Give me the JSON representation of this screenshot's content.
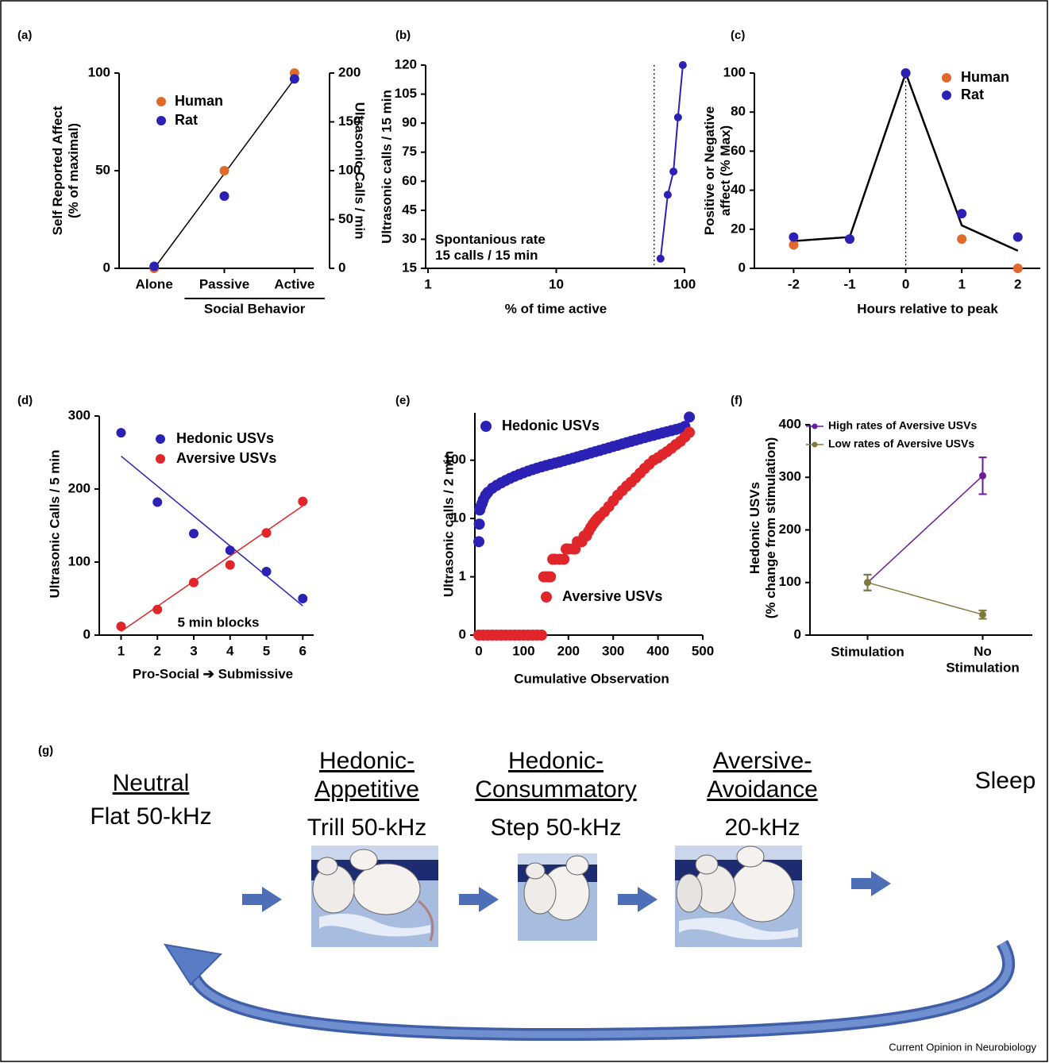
{
  "chart_data": [
    {
      "type": "scatter",
      "label": "(a)",
      "categories": [
        "Alone",
        "Passive",
        "Active"
      ],
      "group_label": "Social Behavior",
      "ylabel": "Self Reported Affect\n(% of maximal)",
      "y2label": "Ultrasonic Calls / min",
      "ylim": [
        0,
        100
      ],
      "yticks": [
        0,
        50,
        100
      ],
      "y2lim": [
        0,
        200
      ],
      "y2ticks": [
        0,
        50,
        100,
        150,
        200
      ],
      "series": [
        {
          "name": "Human",
          "color": "#e06a2c",
          "values": [
            0,
            50,
            100
          ]
        },
        {
          "name": "Rat",
          "color": "#2b22b5",
          "axis": "y2",
          "values": [
            2,
            74,
            194
          ]
        }
      ],
      "fit": {
        "color": "#000000",
        "values": [
          0,
          48.5,
          97
        ]
      }
    },
    {
      "type": "line",
      "label": "(b)",
      "xlabel": "% of time active",
      "ylabel": "Ultrasonic calls / 15 min",
      "xlog": true,
      "xlim": [
        1,
        100
      ],
      "xticks": [
        1,
        10,
        100
      ],
      "ylim": [
        15,
        120
      ],
      "yticks": [
        15,
        30,
        45,
        60,
        75,
        90,
        105,
        120
      ],
      "x": [
        65,
        74,
        82,
        89,
        97
      ],
      "series": [
        {
          "color": "#2b22b5",
          "values": [
            20,
            53,
            65,
            93,
            120
          ]
        }
      ],
      "vline": 58,
      "annotation": "Spontanious rate\n15 calls / 15 min"
    },
    {
      "type": "scatter",
      "label": "(c)",
      "xlabel": "Hours relative to peak",
      "ylabel": "Positive or Negative\naffect (% Max)",
      "xlim": [
        -2.7,
        2.4
      ],
      "xticks": [
        -2,
        -1,
        0,
        1,
        2
      ],
      "ylim": [
        0,
        100
      ],
      "yticks": [
        0,
        20,
        40,
        60,
        80,
        100
      ],
      "x": [
        -2,
        -1,
        0,
        1,
        2
      ],
      "series": [
        {
          "name": "Human",
          "color": "#e06a2c",
          "values": [
            12,
            15,
            100,
            15,
            0
          ]
        },
        {
          "name": "Rat",
          "color": "#2b22b5",
          "values": [
            16,
            15,
            100,
            28,
            16
          ]
        }
      ],
      "fit": {
        "color": "#000000",
        "values": [
          14,
          16,
          100,
          22,
          9
        ]
      },
      "vline": 0
    },
    {
      "type": "scatter",
      "label": "(d)",
      "xlabel": "Pro-Social ➔ Submissive",
      "ylabel": "Ultrasonic Calls / 5 min",
      "xlim": [
        0.4,
        6.3
      ],
      "xticks": [
        1,
        2,
        3,
        4,
        5,
        6
      ],
      "ylim": [
        0,
        300
      ],
      "yticks": [
        0,
        100,
        200,
        300
      ],
      "x": [
        1,
        2,
        3,
        4,
        5,
        6
      ],
      "series": [
        {
          "name": "Hedonic USVs",
          "color": "#2b22b5",
          "values": [
            277,
            182,
            139,
            116,
            87,
            50
          ],
          "fit": {
            "x": [
              1,
              6
            ],
            "values": [
              245,
              40
            ]
          }
        },
        {
          "name": "Aversive USVs",
          "color": "#e0262a",
          "values": [
            12,
            35,
            72,
            96,
            140,
            183
          ],
          "fit": {
            "x": [
              1,
              6
            ],
            "values": [
              5,
              177
            ]
          }
        }
      ],
      "annotation": "5 min blocks"
    },
    {
      "type": "scatter",
      "label": "(e)",
      "xlabel": "Cumulative Observation",
      "ylabel": "Ultrasonic calls / 2 min",
      "xlim": [
        0,
        500
      ],
      "xticks": [
        0,
        100,
        200,
        300,
        400,
        500
      ],
      "ylog": true,
      "ylim": [
        0,
        650
      ],
      "yticks": [
        0,
        1,
        10,
        100
      ],
      "series": [
        {
          "name": "Hedonic USVs",
          "color": "#2b22b5",
          "x": [
            0,
            1,
            2,
            4,
            7,
            10,
            15,
            20,
            30,
            40,
            50,
            60,
            70,
            80,
            90,
            100,
            110,
            120,
            130,
            140,
            150,
            160,
            170,
            180,
            190,
            200,
            210,
            220,
            230,
            240,
            250,
            260,
            270,
            280,
            290,
            300,
            310,
            320,
            330,
            340,
            350,
            360,
            370,
            380,
            390,
            400,
            410,
            420,
            430,
            440,
            450,
            460,
            470
          ],
          "values": [
            4,
            8,
            14,
            16,
            18,
            21,
            25,
            28,
            33,
            37,
            41,
            45,
            49,
            53,
            57,
            61,
            65,
            69,
            73,
            77,
            81,
            85,
            89,
            93,
            98,
            103,
            108,
            114,
            120,
            126,
            133,
            140,
            147,
            155,
            163,
            172,
            180,
            190,
            200,
            210,
            221,
            232,
            244,
            256,
            268,
            281,
            294,
            308,
            322,
            337,
            352,
            380,
            550
          ]
        },
        {
          "name": "Aversive USVs",
          "color": "#e0262a",
          "x": [
            0,
            10,
            20,
            30,
            40,
            50,
            60,
            70,
            80,
            90,
            100,
            110,
            120,
            130,
            140,
            145,
            150,
            155,
            160,
            165,
            170,
            180,
            190,
            195,
            200,
            210,
            215,
            220,
            225,
            230,
            235,
            240,
            245,
            250,
            255,
            260,
            265,
            270,
            280,
            290,
            300,
            310,
            320,
            330,
            340,
            350,
            360,
            370,
            380,
            390,
            400,
            410,
            420,
            430,
            440,
            450,
            460,
            470
          ],
          "values": [
            0,
            0,
            0,
            0,
            0,
            0,
            0,
            0,
            0,
            0,
            0,
            0,
            0,
            0,
            0,
            1,
            1,
            1,
            1,
            2,
            2,
            2,
            2,
            3,
            3,
            3,
            3,
            4,
            4,
            4,
            5,
            5,
            6,
            7,
            8,
            9,
            10,
            11,
            13,
            16,
            20,
            25,
            30,
            36,
            42,
            50,
            60,
            72,
            85,
            100,
            110,
            125,
            140,
            160,
            185,
            210,
            250,
            300
          ]
        }
      ]
    },
    {
      "type": "line",
      "label": "(f)",
      "ylabel": "Hedonic USVs\n(% change from stimulation)",
      "categories": [
        "Stimulation",
        "No\nStimulation"
      ],
      "ylim": [
        0,
        400
      ],
      "yticks": [
        0,
        100,
        200,
        300,
        400
      ],
      "series": [
        {
          "name": "High rates of Aversive USVs",
          "color": "#6a1d9a",
          "values": [
            100,
            303
          ],
          "errors": [
            15,
            35
          ]
        },
        {
          "name": "Low rates of Aversive USVs",
          "color": "#7f7a3c",
          "values": [
            100,
            39
          ],
          "errors": [
            15,
            8
          ]
        }
      ]
    }
  ],
  "diagram": {
    "label": "(g)",
    "states": [
      {
        "name": "Neutral",
        "call": "Flat 50-kHz"
      },
      {
        "name": "Hedonic-\nAppetitive",
        "call": "Trill 50-kHz"
      },
      {
        "name": "Hedonic-\nConsummatory",
        "call": "Step 50-kHz"
      },
      {
        "name": "Aversive-\nAvoidance",
        "call": "20-kHz"
      },
      {
        "name": "Sleep"
      }
    ]
  },
  "credit": "Current Opinion in Neurobiology"
}
